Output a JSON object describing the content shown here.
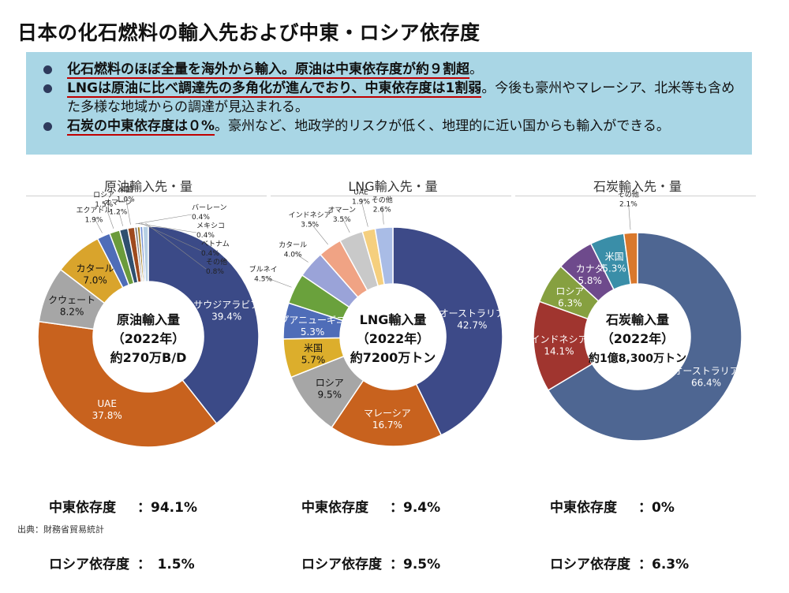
{
  "title": "日本の化石燃料の輸入先および中東・ロシア依存度",
  "summary": {
    "b1_em": "化石燃料のほぼ全量を海外から輸入。原油は中東依存度が約９割超",
    "b1_rest": "。",
    "b2_em": "LNGは原油に比べ調達先の多角化が進んでおり、中東依存度は1割弱",
    "b2_rest": "。今後も豪州やマレーシア、北米等も含めた多様な地域からの調達が見込まれる。",
    "b3_em": "石炭の中東依存度は０%",
    "b3_rest": "。豪州など、地政学的リスクが低く、地理的に近い国からも輸入ができる。"
  },
  "chart_data": [
    {
      "type": "pie",
      "title": "原油輸入先・量",
      "center": [
        "原油輸入量",
        "（2022年）",
        "約270万B/D"
      ],
      "slices": [
        {
          "label": "サウジアラビア",
          "value": 39.4,
          "pct": "39.4%",
          "color": "#3b4a87"
        },
        {
          "label": "UAE",
          "value": 37.8,
          "pct": "37.8%",
          "color": "#c8621e"
        },
        {
          "label": "クウェート",
          "value": 8.2,
          "pct": "8.2%",
          "color": "#a6a6a6"
        },
        {
          "label": "カタール",
          "value": 7.0,
          "pct": "7.0%",
          "color": "#d9a42c"
        },
        {
          "label": "エクアドル",
          "value": 1.9,
          "pct": "1.9%",
          "color": "#4f6db8"
        },
        {
          "label": "ロシア",
          "value": 1.5,
          "pct": "1.5%",
          "color": "#6b9b3c"
        },
        {
          "label": "オマーン",
          "value": 1.2,
          "pct": "1.2%",
          "color": "#2f4f6f"
        },
        {
          "label": "米国",
          "value": 1.0,
          "pct": "1.0%",
          "color": "#9e4a1e"
        },
        {
          "label": "バーレーン",
          "value": 0.4,
          "pct": "0.4%",
          "color": "#7f7f7f"
        },
        {
          "label": "メキシコ",
          "value": 0.4,
          "pct": "0.4%",
          "color": "#9e7a1e"
        },
        {
          "label": "ベトナム",
          "value": 0.4,
          "pct": "0.4%",
          "color": "#7a95d4"
        },
        {
          "label": "その他",
          "value": 0.8,
          "pct": "0.8%",
          "color": "#b6cfe3"
        }
      ],
      "dependency": {
        "me_label": "中東依存度",
        "me_value": "：94.1%",
        "ru_label": "ロシア依存度",
        "ru_value": "：　1.5%"
      }
    },
    {
      "type": "pie",
      "title": "LNG輸入先・量",
      "center": [
        "LNG輸入量",
        "（2022年）",
        "約7200万トン"
      ],
      "slices": [
        {
          "label": "オーストラリア",
          "value": 42.7,
          "pct": "42.7%",
          "color": "#3d4a88"
        },
        {
          "label": "マレーシア",
          "value": 16.7,
          "pct": "16.7%",
          "color": "#c8621e"
        },
        {
          "label": "ロシア",
          "value": 9.5,
          "pct": "9.5%",
          "color": "#a6a6a6"
        },
        {
          "label": "米国",
          "value": 5.7,
          "pct": "5.7%",
          "color": "#dcae2c"
        },
        {
          "label": "パプアニューギニア",
          "value": 5.3,
          "pct": "5.3%",
          "color": "#4f6db8"
        },
        {
          "label": "ブルネイ",
          "value": 4.5,
          "pct": "4.5%",
          "color": "#6aa13c"
        },
        {
          "label": "カタール",
          "value": 4.0,
          "pct": "4.0%",
          "color": "#9aa3d8"
        },
        {
          "label": "インドネシア",
          "value": 3.5,
          "pct": "3.5%",
          "color": "#f0a384"
        },
        {
          "label": "オマーン",
          "value": 3.5,
          "pct": "3.5%",
          "color": "#c9c9c9"
        },
        {
          "label": "UAE",
          "value": 1.9,
          "pct": "1.9%",
          "color": "#f5cf7e"
        },
        {
          "label": "その他",
          "value": 2.6,
          "pct": "2.6%",
          "color": "#a9bce6"
        }
      ],
      "dependency": {
        "me_label": "中東依存度",
        "me_value": "：9.4%",
        "ru_label": "ロシア依存度",
        "ru_value": "：9.5%"
      }
    },
    {
      "type": "pie",
      "title": "石炭輸入先・量",
      "center": [
        "石炭輸入量",
        "（2022年）",
        "約1億8,300万トン"
      ],
      "slices": [
        {
          "label": "オーストラリア",
          "value": 66.4,
          "pct": "66.4%",
          "color": "#4e6692"
        },
        {
          "label": "インドネシア",
          "value": 14.1,
          "pct": "14.1%",
          "color": "#a0352f"
        },
        {
          "label": "ロシア",
          "value": 6.3,
          "pct": "6.3%",
          "color": "#86a040"
        },
        {
          "label": "カナダ",
          "value": 5.8,
          "pct": "5.8%",
          "color": "#6e4a8c"
        },
        {
          "label": "米国",
          "value": 5.3,
          "pct": "5.3%",
          "color": "#3a8ea8"
        },
        {
          "label": "その他",
          "value": 2.1,
          "pct": "2.1%",
          "color": "#d9782c"
        }
      ],
      "dependency": {
        "me_label": "中東依存度",
        "me_value": "：0%",
        "ru_label": "ロシア依存度",
        "ru_value": "：6.3%"
      }
    }
  ],
  "source": "出典：財務省貿易統計"
}
